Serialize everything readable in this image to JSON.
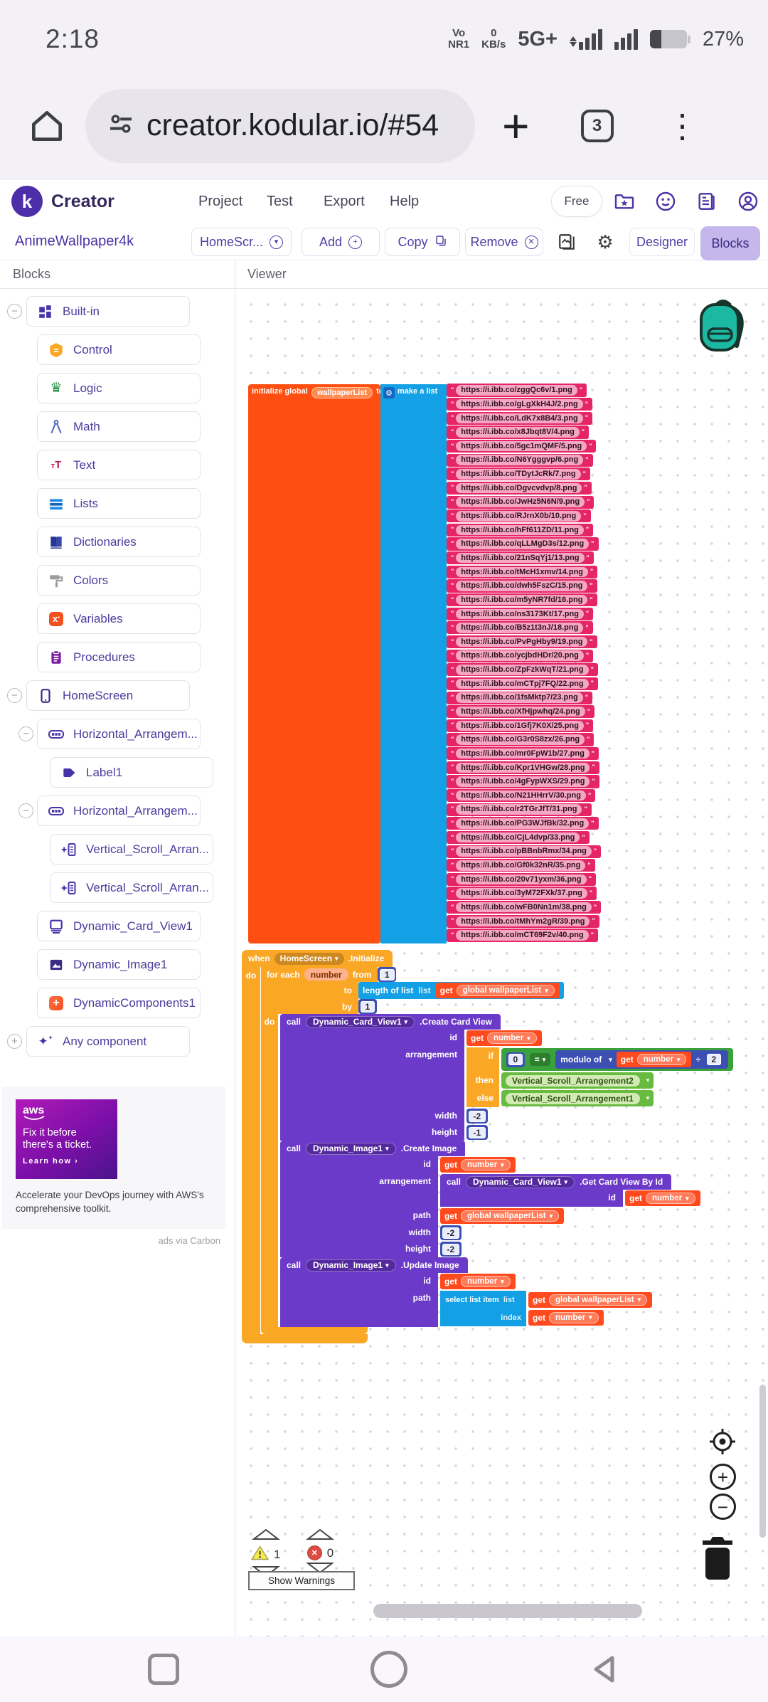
{
  "colors": {
    "brand_purple": "#4B2EA8",
    "blocks_tab_active_bg": "#C5B6EB",
    "init_block_orange": "#FF4E11",
    "list_block_blue": "#14A0E4",
    "text_block_pink": "#E62566",
    "event_block_yellow": "#FAA726",
    "call_block_purple": "#6B3AC8",
    "get_block_red": "#FF4A1E",
    "math_block_indigo": "#3C50B4",
    "logic_block_green": "#3AA23A",
    "component_block_green": "#68BB41",
    "backpack_teal": "#1CB9A2"
  },
  "status_bar": {
    "time": "2:18",
    "volte_line1": "Vo",
    "volte_line2": "NR1",
    "net_speed_value": "0",
    "net_speed_unit": "KB/s",
    "network_type": "5G+",
    "battery_percent": "27%"
  },
  "browser": {
    "url": "creator.kodular.io/#54",
    "tab_count": "3"
  },
  "app_header": {
    "logo_letter": "k",
    "brand": "Creator",
    "menu": [
      "Project",
      "Test",
      "Export",
      "Help"
    ],
    "free_badge": "Free"
  },
  "toolbar": {
    "project_name": "AnimeWallpaper4k",
    "screen_selector_label": "HomeScr...",
    "add_label": "Add",
    "copy_label": "Copy",
    "remove_label": "Remove",
    "designer_label": "Designer",
    "blocks_label": "Blocks"
  },
  "sidebar": {
    "title": "Blocks",
    "tree": [
      {
        "name": "builtin",
        "icon": "builtin-icon",
        "label": "Built-in",
        "level": 0,
        "collapse": "minus"
      },
      {
        "name": "control",
        "icon": "control-icon",
        "label": "Control",
        "level": 1
      },
      {
        "name": "logic",
        "icon": "logic-icon",
        "label": "Logic",
        "level": 1
      },
      {
        "name": "math",
        "icon": "math-icon",
        "label": "Math",
        "level": 1
      },
      {
        "name": "text",
        "icon": "text-icon",
        "label": "Text",
        "level": 1
      },
      {
        "name": "lists",
        "icon": "lists-icon",
        "label": "Lists",
        "level": 1
      },
      {
        "name": "dictionaries",
        "icon": "dictionaries-icon",
        "label": "Dictionaries",
        "level": 1
      },
      {
        "name": "colors",
        "icon": "colors-icon",
        "label": "Colors",
        "level": 1
      },
      {
        "name": "variables",
        "icon": "variables-icon",
        "label": "Variables",
        "level": 1
      },
      {
        "name": "procedures",
        "icon": "procedures-icon",
        "label": "Procedures",
        "level": 1
      },
      {
        "name": "homescreen",
        "icon": "screen-icon",
        "label": "HomeScreen",
        "level": 0,
        "collapse": "minus"
      },
      {
        "name": "horizontal-arrangement-1",
        "icon": "harrangement-icon",
        "label": "Horizontal_Arrangem...",
        "level": 1,
        "collapse": "minus"
      },
      {
        "name": "label1",
        "icon": "label-icon",
        "label": "Label1",
        "level": 2
      },
      {
        "name": "horizontal-arrangement-2",
        "icon": "harrangement-icon",
        "label": "Horizontal_Arrangem...",
        "level": 1,
        "collapse": "minus"
      },
      {
        "name": "vertical-scroll-1",
        "icon": "vscroll-icon",
        "label": "Vertical_Scroll_Arran...",
        "level": 2
      },
      {
        "name": "vertical-scroll-2",
        "icon": "vscroll-icon",
        "label": "Vertical_Scroll_Arran...",
        "level": 2
      },
      {
        "name": "dynamic-card-view1",
        "icon": "cardview-icon",
        "label": "Dynamic_Card_View1",
        "level": 1
      },
      {
        "name": "dynamic-image1",
        "icon": "image-icon",
        "label": "Dynamic_Image1",
        "level": 1
      },
      {
        "name": "dynamic-components1",
        "icon": "dyncomponents-icon",
        "label": "DynamicComponents1",
        "level": 1
      },
      {
        "name": "any-component",
        "icon": "anycomponent-icon",
        "label": "Any component",
        "level": 0,
        "collapse": "plus"
      }
    ],
    "ad": {
      "brand": "aws",
      "headline_line1": "Fix it before",
      "headline_line2": "there's a ticket.",
      "cta": "Learn how",
      "description": "Accelerate your DevOps journey with AWS's comprehensive toolkit.",
      "attribution": "ads via Carbon"
    }
  },
  "viewer": {
    "title": "Viewer",
    "init_block": {
      "keyword": "initialize global",
      "variable": "wallpaperList",
      "to": "to",
      "make_list_label": "make a list",
      "urls": [
        "https://i.ibb.co/zggQc6v/1.png",
        "https://i.ibb.co/gLgXkH4J/2.png",
        "https://i.ibb.co/LdK7x8B4/3.png",
        "https://i.ibb.co/x8Jbqt8V/4.png",
        "https://i.ibb.co/5gc1mQMF/5.png",
        "https://i.ibb.co/N6Ygggvp/6.png",
        "https://i.ibb.co/TDytJcRk/7.png",
        "https://i.ibb.co/Dgvcvdvp/8.png",
        "https://i.ibb.co/JwHz5N6N/9.png",
        "https://i.ibb.co/RJrnX0b/10.png",
        "https://i.ibb.co/hFf611ZD/11.png",
        "https://i.ibb.co/qLLMgD3s/12.png",
        "https://i.ibb.co/21nSqYj1/13.png",
        "https://i.ibb.co/tMcH1xmv/14.png",
        "https://i.ibb.co/dwh5FszC/15.png",
        "https://i.ibb.co/m5yNR7fd/16.png",
        "https://i.ibb.co/ns3173Kt/17.png",
        "https://i.ibb.co/B5z1t3nJ/18.png",
        "https://i.ibb.co/PvPgHby9/19.png",
        "https://i.ibb.co/ycjbdHDr/20.png",
        "https://i.ibb.co/ZpFzkWqT/21.png",
        "https://i.ibb.co/mCTpj7FQ/22.png",
        "https://i.ibb.co/1fsMktp7/23.png",
        "https://i.ibb.co/XfHjpwhq/24.png",
        "https://i.ibb.co/1Gfj7K0X/25.png",
        "https://i.ibb.co/G3r0S8zx/26.png",
        "https://i.ibb.co/mr0FpW1b/27.png",
        "https://i.ibb.co/Kpr1VHGw/28.png",
        "https://i.ibb.co/4gFypWXS/29.png",
        "https://i.ibb.co/N21HHrrV/30.png",
        "https://i.ibb.co/r2TGrJfT/31.png",
        "https://i.ibb.co/PG3WJfBk/32.png",
        "https://i.ibb.co/CjL4dvp/33.png",
        "https://i.ibb.co/pBBnbRmx/34.png",
        "https://i.ibb.co/Gf0k32nR/35.png",
        "https://i.ibb.co/20v71yxm/36.png",
        "https://i.ibb.co/3yM72FXk/37.png",
        "https://i.ibb.co/wFB0Nn1m/38.png",
        "https://i.ibb.co/tMhYm2gR/39.png",
        "https://i.ibb.co/mCT69F2v/40.png"
      ]
    },
    "event_block": {
      "when": "when",
      "screen": "HomeScreen",
      "event_name": ".Initialize",
      "do": "do",
      "foreach": {
        "keyword": "for each",
        "var_name": "number",
        "from": "from",
        "from_value": "1",
        "to": "to",
        "by": "by",
        "by_value": "1",
        "do": "do"
      },
      "length_of_list": {
        "keyword": "length of list",
        "list": "list"
      },
      "get_label": "get",
      "global_list_var": "global wallpaperList",
      "number_var": "number",
      "create_card_view": {
        "call": "call",
        "component": "Dynamic_Card_View1",
        "method": ".Create Card View",
        "param_id": "id",
        "param_arrangement": "arrangement",
        "param_width": "width",
        "param_height": "height",
        "width_value": "-2",
        "height_value": "-1"
      },
      "if_block": {
        "if": "if",
        "then": "then",
        "else": "else",
        "left_value": "0",
        "operator": "=",
        "modulo_label": "modulo of",
        "divide_sign": "÷",
        "divisor": "2",
        "then_component": "Vertical_Scroll_Arrangement2",
        "else_component": "Vertical_Scroll_Arrangement1"
      },
      "create_image": {
        "call": "call",
        "component": "Dynamic_Image1",
        "method": ".Create Image",
        "param_id": "id",
        "param_arrangement": "arrangement",
        "param_path": "path",
        "param_width": "width",
        "param_height": "height",
        "width_value": "-2",
        "height_value": "-2"
      },
      "get_card_view": {
        "call": "call",
        "component": "Dynamic_Card_View1",
        "method": ".Get Card View By Id",
        "param_id": "id"
      },
      "update_image": {
        "call": "call",
        "component": "Dynamic_Image1",
        "method": ".Update Image",
        "param_id": "id",
        "param_path": "path"
      },
      "select_list_item": {
        "keyword": "select list item",
        "list": "list",
        "index": "index"
      }
    },
    "footer": {
      "warning_count": "1",
      "error_count": "0",
      "show_warnings_label": "Show Warnings"
    }
  }
}
